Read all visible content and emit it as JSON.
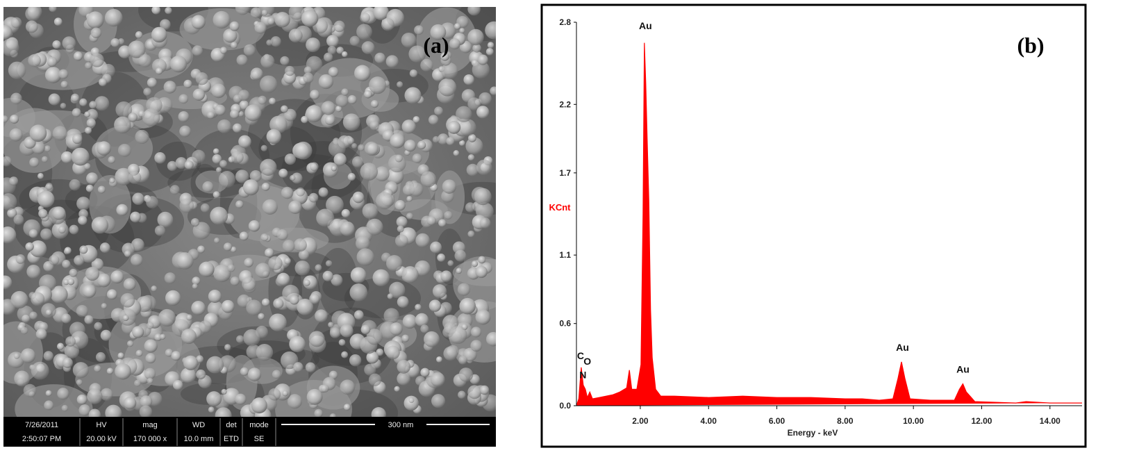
{
  "sem_image": {
    "panel_label": "(a)",
    "info_bar": [
      {
        "header": "7/26/2011",
        "value": "2:50:07 PM"
      },
      {
        "header": "HV",
        "value": "20.00 kV"
      },
      {
        "header": "mag",
        "value": "170 000 x"
      },
      {
        "header": "WD",
        "value": "10.0 mm"
      },
      {
        "header": "det",
        "value": "ETD"
      },
      {
        "header": "mode",
        "value": "SE"
      }
    ],
    "scale_bar": "300 nm"
  },
  "chart_data": {
    "type": "area",
    "panel_label": "(b)",
    "xlabel": "Energy - keV",
    "ylabel": "KCnt",
    "color": "#ff0000",
    "x": [
      0.13,
      0.2,
      0.27,
      0.33,
      0.39,
      0.45,
      0.52,
      0.6,
      0.8,
      1.0,
      1.2,
      1.4,
      1.6,
      1.68,
      1.75,
      1.9,
      2.02,
      2.08,
      2.12,
      2.16,
      2.2,
      2.25,
      2.3,
      2.35,
      2.45,
      2.6,
      3.0,
      4.0,
      5.0,
      6.0,
      7.0,
      8.0,
      8.5,
      9.0,
      9.4,
      9.55,
      9.65,
      9.75,
      9.9,
      10.5,
      11.2,
      11.35,
      11.45,
      11.55,
      11.8,
      13.0,
      13.3,
      14.0,
      14.94
    ],
    "values": [
      0.0,
      0.05,
      0.28,
      0.15,
      0.12,
      0.06,
      0.1,
      0.05,
      0.06,
      0.07,
      0.08,
      0.1,
      0.13,
      0.26,
      0.12,
      0.12,
      0.3,
      1.4,
      2.65,
      2.35,
      1.95,
      1.5,
      0.7,
      0.35,
      0.12,
      0.07,
      0.07,
      0.06,
      0.07,
      0.06,
      0.06,
      0.05,
      0.05,
      0.04,
      0.05,
      0.2,
      0.32,
      0.2,
      0.05,
      0.04,
      0.04,
      0.12,
      0.16,
      0.1,
      0.03,
      0.02,
      0.03,
      0.02,
      0.02
    ],
    "xlim": [
      0.13,
      14.94
    ],
    "xticks": [
      {
        "value": 2,
        "label": "2.00"
      },
      {
        "value": 4,
        "label": "4.00"
      },
      {
        "value": 6,
        "label": "6.00"
      },
      {
        "value": 8,
        "label": "8.00"
      },
      {
        "value": 10,
        "label": "10.00"
      },
      {
        "value": 12,
        "label": "12.00"
      },
      {
        "value": 14,
        "label": "14.00"
      }
    ],
    "ylim": [
      0,
      2.8
    ],
    "yticks": [
      {
        "value": 0,
        "label": "0.0"
      },
      0.6,
      1.1,
      1.7,
      2.2,
      2.8
    ],
    "annotations": [
      {
        "text": "Au",
        "x": 2.15,
        "y": 2.75
      },
      {
        "text": "Au",
        "x": 9.68,
        "y": 0.4
      },
      {
        "text": "Au",
        "x": 11.45,
        "y": 0.24
      },
      {
        "text": "C",
        "x": 0.25,
        "y": 0.34
      },
      {
        "text": "O",
        "x": 0.45,
        "y": 0.3
      },
      {
        "text": "N",
        "x": 0.32,
        "y": 0.2
      }
    ]
  }
}
